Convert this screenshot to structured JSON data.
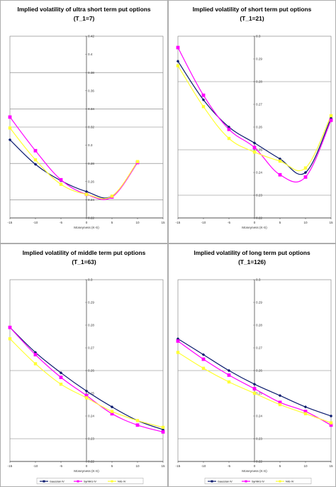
{
  "colors": {
    "gaussian": "#0a1a6e",
    "synnig": "#ff00ff",
    "nig": "#ffff33"
  },
  "chart_data": [
    {
      "type": "line",
      "title": "Implied volatility of ultra short term put options",
      "subtitle": "(T_1=7)",
      "xlabel": "Moneyness (K-S)",
      "ylabel": "",
      "xlim": [
        -15,
        15
      ],
      "ylim": [
        0.22,
        0.42
      ],
      "yticks": [
        "0.22",
        "0.24",
        "0.26",
        "0.28",
        "0.3",
        "0.32",
        "0.34",
        "0.36",
        "0.38",
        "0.4",
        "0.42"
      ],
      "xticks": [
        "-15",
        "-10",
        "-5",
        "0",
        "5",
        "10",
        "15"
      ],
      "grid": "horizontal lines at 0.24, 0.28, 0.32, 0.34, 0.38",
      "series": [
        {
          "name": "Gaussian IV",
          "x": [
            -15,
            -10,
            -5,
            0,
            5,
            10
          ],
          "y": [
            0.306,
            0.279,
            0.261,
            0.249,
            0.244,
            0.281
          ]
        },
        {
          "name": "SynNIG IV",
          "x": [
            -15,
            -10,
            -5,
            0,
            5,
            10
          ],
          "y": [
            0.331,
            0.294,
            0.262,
            0.246,
            0.243,
            0.281
          ]
        },
        {
          "name": "NIG IV",
          "x": [
            -15,
            -10,
            -5,
            0,
            5,
            10
          ],
          "y": [
            0.319,
            0.284,
            0.257,
            0.246,
            0.244,
            0.282
          ]
        }
      ]
    },
    {
      "type": "line",
      "title": "Implied volatility of short term put options",
      "subtitle": "(T_1=21)",
      "xlabel": "Moneyness (K-S)",
      "ylabel": "",
      "xlim": [
        -15,
        15
      ],
      "ylim": [
        0.22,
        0.3
      ],
      "yticks": [
        "0.22",
        "0.23",
        "0.24",
        "0.25",
        "0.26",
        "0.27",
        "0.28",
        "0.29",
        "0.3"
      ],
      "xticks": [
        "-15",
        "-10",
        "-5",
        "0",
        "5",
        "10",
        "15"
      ],
      "grid": "horizontal lines at 0.23, 0.25, 0.28",
      "series": [
        {
          "name": "Gaussian IV",
          "x": [
            -15,
            -10,
            -5,
            0,
            5,
            10,
            15
          ],
          "y": [
            0.289,
            0.272,
            0.26,
            0.253,
            0.246,
            0.24,
            0.264
          ]
        },
        {
          "name": "SynNIG IV",
          "x": [
            -15,
            -10,
            -5,
            0,
            5,
            10,
            15
          ],
          "y": [
            0.295,
            0.274,
            0.259,
            0.251,
            0.239,
            0.238,
            0.263
          ]
        },
        {
          "name": "NIG IV",
          "x": [
            -15,
            -10,
            -5,
            0,
            5,
            10,
            15
          ],
          "y": [
            0.287,
            0.269,
            0.255,
            0.249,
            0.245,
            0.242,
            0.265
          ]
        }
      ]
    },
    {
      "type": "line",
      "title": "Implied volatility of middle term put options",
      "subtitle": "(T_1=63)",
      "xlabel": "Moneyness (K-S)",
      "ylabel": "",
      "xlim": [
        -15,
        15
      ],
      "ylim": [
        0.22,
        0.3
      ],
      "yticks": [
        "0.22",
        "0.23",
        "0.24",
        "0.25",
        "0.26",
        "0.27",
        "0.28",
        "0.29",
        "0.3"
      ],
      "xticks": [
        "-15",
        "-10",
        "-5",
        "0",
        "5",
        "10",
        "15"
      ],
      "grid": "horizontal lines at 0.23, 0.26",
      "series": [
        {
          "name": "Gaussian IV",
          "x": [
            -15,
            -10,
            -5,
            0,
            5,
            10,
            15
          ],
          "y": [
            0.279,
            0.268,
            0.259,
            0.251,
            0.244,
            0.238,
            0.234
          ]
        },
        {
          "name": "SynNIG IV",
          "x": [
            -15,
            -10,
            -5,
            0,
            5,
            10,
            15
          ],
          "y": [
            0.279,
            0.267,
            0.257,
            0.249,
            0.241,
            0.236,
            0.233
          ]
        },
        {
          "name": "NIG IV",
          "x": [
            -15,
            -10,
            -5,
            0,
            5,
            10,
            15
          ],
          "y": [
            0.274,
            0.263,
            0.254,
            0.248,
            0.242,
            0.238,
            0.235
          ]
        }
      ]
    },
    {
      "type": "line",
      "title": "Implied volatility of long term put options",
      "subtitle": "(T_1=126)",
      "xlabel": "Moneyness (K-S)",
      "ylabel": "",
      "xlim": [
        -15,
        15
      ],
      "ylim": [
        0.22,
        0.3
      ],
      "yticks": [
        "0.22",
        "0.23",
        "0.24",
        "0.25",
        "0.26",
        "0.27",
        "0.28",
        "0.29",
        "0.3"
      ],
      "xticks": [
        "-15",
        "-10",
        "-5",
        "0",
        "5",
        "10",
        "15"
      ],
      "grid": "horizontal lines at 0.23, 0.26",
      "series": [
        {
          "name": "Gaussian IV",
          "x": [
            -15,
            -10,
            -5,
            0,
            5,
            10,
            15
          ],
          "y": [
            0.274,
            0.267,
            0.26,
            0.254,
            0.249,
            0.244,
            0.24
          ]
        },
        {
          "name": "SynNIG IV",
          "x": [
            -15,
            -10,
            -5,
            0,
            5,
            10,
            15
          ],
          "y": [
            0.273,
            0.265,
            0.258,
            0.252,
            0.246,
            0.242,
            0.236
          ]
        },
        {
          "name": "NIG IV",
          "x": [
            -15,
            -10,
            -5,
            0,
            5,
            10,
            15
          ],
          "y": [
            0.268,
            0.261,
            0.255,
            0.25,
            0.245,
            0.241,
            0.237
          ]
        }
      ]
    }
  ],
  "legend": {
    "placement": "bottom",
    "entries": [
      "Gaussian IV",
      "SynNIG IV",
      "NIG IV"
    ]
  }
}
